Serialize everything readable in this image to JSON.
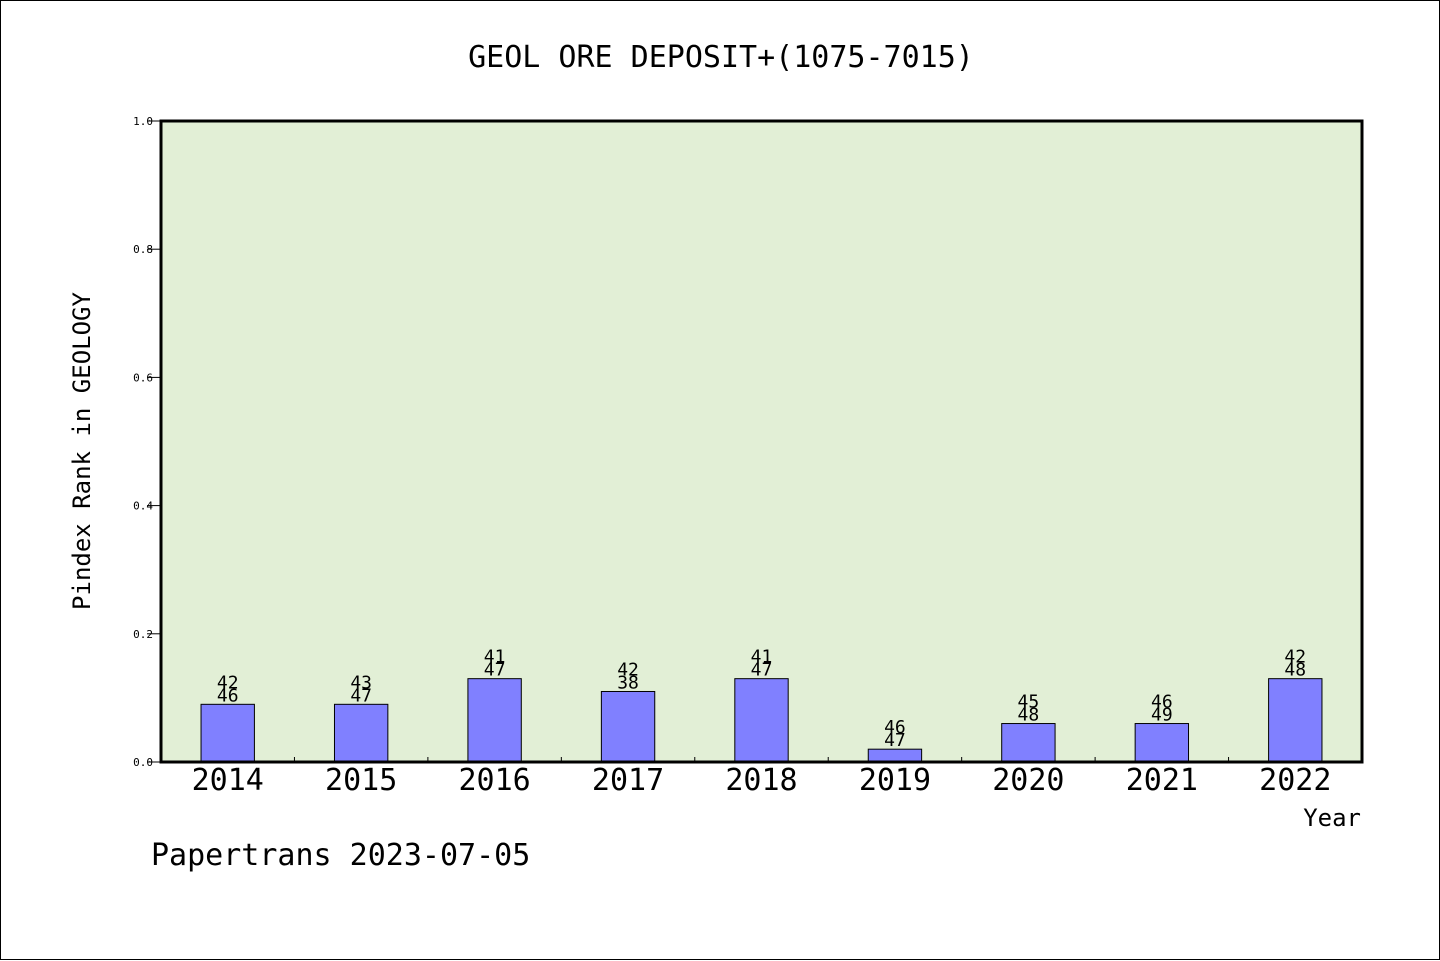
{
  "chart_data": {
    "type": "bar",
    "title": "GEOL ORE DEPOSIT+(1075-7015)",
    "xlabel": "Year",
    "ylabel": "Pindex Rank in GEOLOGY",
    "categories": [
      "2014",
      "2015",
      "2016",
      "2017",
      "2018",
      "2019",
      "2020",
      "2021",
      "2022"
    ],
    "values": [
      0.09,
      0.09,
      0.13,
      0.11,
      0.13,
      0.02,
      0.06,
      0.06,
      0.13
    ],
    "label_top": [
      "42",
      "43",
      "41",
      "42",
      "41",
      "46",
      "45",
      "46",
      "42"
    ],
    "label_bottom": [
      "46",
      "47",
      "47",
      "38",
      "47",
      "47",
      "48",
      "49",
      "48"
    ],
    "ylim": [
      0,
      1.0
    ],
    "yticks": [
      "0.0",
      "0.2",
      "0.4",
      "0.6",
      "0.8",
      "1.0"
    ],
    "grid": false,
    "colors": {
      "bar": "#8080ff",
      "plot_background": "#e2efd6",
      "axis": "#000000"
    }
  },
  "footer": "Papertrans 2023-07-05"
}
